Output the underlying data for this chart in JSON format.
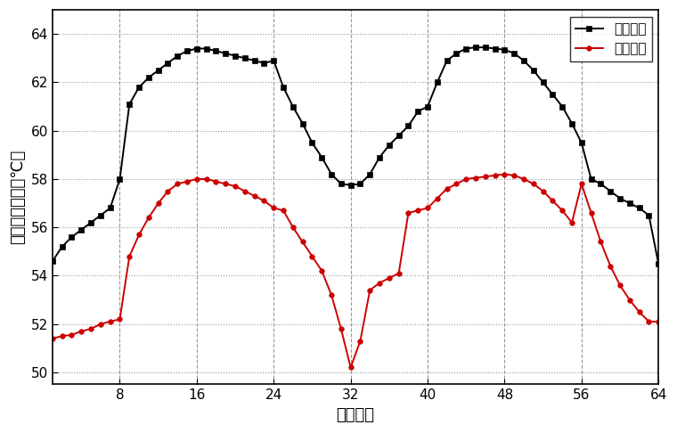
{
  "x": [
    1,
    2,
    3,
    4,
    5,
    6,
    7,
    8,
    9,
    10,
    11,
    12,
    13,
    14,
    15,
    16,
    17,
    18,
    19,
    20,
    21,
    22,
    23,
    24,
    25,
    26,
    27,
    28,
    29,
    30,
    31,
    32,
    33,
    34,
    35,
    36,
    37,
    38,
    39,
    40,
    41,
    42,
    43,
    44,
    45,
    46,
    47,
    48,
    49,
    50,
    51,
    52,
    53,
    54,
    55,
    56,
    57,
    58,
    59,
    60,
    61,
    62,
    63,
    64
  ],
  "black_y": [
    54.6,
    55.2,
    55.6,
    55.9,
    56.2,
    56.5,
    56.8,
    58.0,
    61.1,
    61.8,
    62.2,
    62.5,
    62.8,
    63.1,
    63.3,
    63.4,
    63.4,
    63.3,
    63.2,
    63.1,
    63.0,
    62.9,
    62.8,
    62.9,
    61.8,
    61.0,
    60.3,
    59.5,
    58.9,
    58.2,
    57.8,
    57.75,
    57.8,
    58.2,
    58.9,
    59.4,
    59.8,
    60.2,
    60.8,
    61.0,
    62.0,
    62.9,
    63.2,
    63.4,
    63.45,
    63.45,
    63.4,
    63.35,
    63.2,
    62.9,
    62.5,
    62.0,
    61.5,
    61.0,
    60.3,
    59.5,
    58.0,
    57.8,
    57.5,
    57.2,
    57.0,
    56.8,
    56.5,
    54.5
  ],
  "red_y": [
    51.4,
    51.5,
    51.55,
    51.7,
    51.8,
    52.0,
    52.1,
    52.2,
    54.8,
    55.7,
    56.4,
    57.0,
    57.5,
    57.8,
    57.9,
    58.0,
    58.0,
    57.9,
    57.8,
    57.7,
    57.5,
    57.3,
    57.1,
    56.8,
    56.7,
    56.0,
    55.4,
    54.8,
    54.2,
    53.2,
    51.8,
    50.2,
    51.3,
    53.4,
    53.7,
    53.9,
    54.1,
    56.6,
    56.7,
    56.8,
    57.2,
    57.6,
    57.8,
    58.0,
    58.05,
    58.1,
    58.15,
    58.2,
    58.15,
    58.0,
    57.8,
    57.5,
    57.1,
    56.7,
    56.2,
    57.8,
    56.6,
    55.4,
    54.4,
    53.6,
    53.0,
    52.5,
    52.1,
    52.1
  ],
  "black_color": "#000000",
  "red_color": "#cc0000",
  "xlabel": "电芯编号",
  "ylabel": "电芯最高温度（℃）",
  "legend_black": "自然对流",
  "legend_red": "风冷散热",
  "xlim": [
    1,
    64
  ],
  "ylim": [
    49.5,
    65.0
  ],
  "xticks": [
    8,
    16,
    24,
    32,
    40,
    48,
    56,
    64
  ],
  "yticks": [
    50,
    52,
    54,
    56,
    58,
    60,
    62,
    64
  ],
  "background_color": "#ffffff"
}
